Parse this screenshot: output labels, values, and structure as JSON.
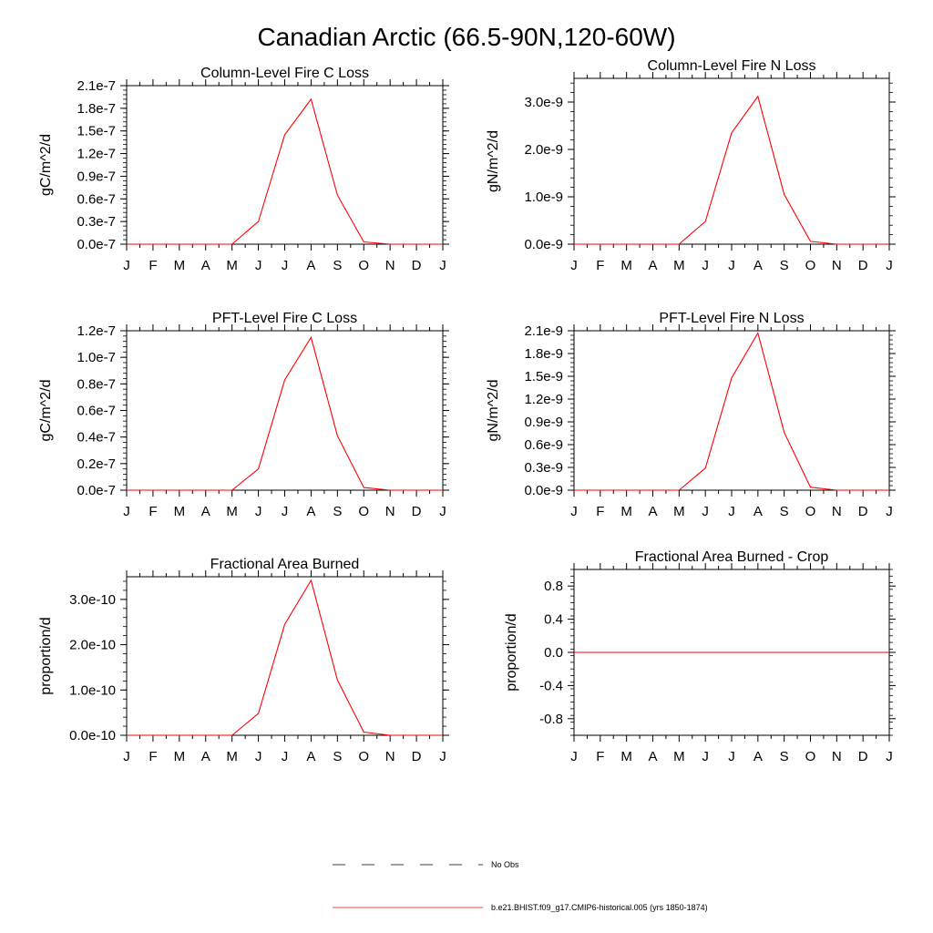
{
  "figure": {
    "title": "Canadian Arctic (66.5-90N,120-60W)",
    "months": [
      "J",
      "F",
      "M",
      "A",
      "M",
      "J",
      "J",
      "A",
      "S",
      "O",
      "N",
      "D",
      "J"
    ],
    "line_color": "#ff0000",
    "axis_color": "#000000"
  },
  "chart_data": [
    {
      "type": "line",
      "title": "Column-Level Fire C Loss",
      "xlabel": "",
      "ylabel": "gC/m^2/d",
      "x": [
        "J",
        "F",
        "M",
        "A",
        "M",
        "J",
        "J",
        "A",
        "S",
        "O",
        "N",
        "D",
        "J"
      ],
      "series": [
        {
          "name": "b.e21.BHIST.f09_g17.CMIP6-historical.005 (yrs 1850-1874)",
          "values": [
            0,
            0,
            0,
            0,
            0,
            3e-08,
            1.45e-07,
            1.92e-07,
            6.5e-08,
            3e-09,
            0,
            0,
            0
          ]
        }
      ],
      "ylim": [
        0,
        2.1e-07
      ],
      "yticks": [
        0,
        3e-08,
        6e-08,
        9e-08,
        1.2e-07,
        1.5e-07,
        1.8e-07,
        2.1e-07
      ],
      "ytick_labels": [
        "0.0e-7",
        "0.3e-7",
        "0.6e-7",
        "0.9e-7",
        "1.2e-7",
        "1.5e-7",
        "1.8e-7",
        "2.1e-7"
      ]
    },
    {
      "type": "line",
      "title": "Column-Level Fire N Loss",
      "xlabel": "",
      "ylabel": "gN/m^2/d",
      "x": [
        "J",
        "F",
        "M",
        "A",
        "M",
        "J",
        "J",
        "A",
        "S",
        "O",
        "N",
        "D",
        "J"
      ],
      "series": [
        {
          "name": "b.e21.BHIST.f09_g17.CMIP6-historical.005 (yrs 1850-1874)",
          "values": [
            0,
            0,
            0,
            0,
            0,
            4.8e-10,
            2.35e-09,
            3.12e-09,
            1.05e-09,
            6e-11,
            0,
            0,
            0
          ]
        }
      ],
      "ylim": [
        0,
        3.5e-09
      ],
      "yticks": [
        0,
        1e-09,
        2e-09,
        3e-09
      ],
      "ytick_labels": [
        "0.0e-9",
        "1.0e-9",
        "2.0e-9",
        "3.0e-9"
      ]
    },
    {
      "type": "line",
      "title": "PFT-Level Fire C Loss",
      "xlabel": "",
      "ylabel": "gC/m^2/d",
      "x": [
        "J",
        "F",
        "M",
        "A",
        "M",
        "J",
        "J",
        "A",
        "S",
        "O",
        "N",
        "D",
        "J"
      ],
      "series": [
        {
          "name": "b.e21.BHIST.f09_g17.CMIP6-historical.005 (yrs 1850-1874)",
          "values": [
            0,
            0,
            0,
            0,
            0,
            1.6e-08,
            8.3e-08,
            1.15e-07,
            4.1e-08,
            2e-09,
            0,
            0,
            0
          ]
        }
      ],
      "ylim": [
        0,
        1.2e-07
      ],
      "yticks": [
        0,
        2e-08,
        4e-08,
        6e-08,
        8e-08,
        1e-07,
        1.2e-07
      ],
      "ytick_labels": [
        "0.0e-7",
        "0.2e-7",
        "0.4e-7",
        "0.6e-7",
        "0.8e-7",
        "1.0e-7",
        "1.2e-7"
      ]
    },
    {
      "type": "line",
      "title": "PFT-Level Fire N Loss",
      "xlabel": "",
      "ylabel": "gN/m^2/d",
      "x": [
        "J",
        "F",
        "M",
        "A",
        "M",
        "J",
        "J",
        "A",
        "S",
        "O",
        "N",
        "D",
        "J"
      ],
      "series": [
        {
          "name": "b.e21.BHIST.f09_g17.CMIP6-historical.005 (yrs 1850-1874)",
          "values": [
            0,
            0,
            0,
            0,
            0,
            2.9e-10,
            1.48e-09,
            2.07e-09,
            7.6e-10,
            4e-11,
            0,
            0,
            0
          ]
        }
      ],
      "ylim": [
        0,
        2.1e-09
      ],
      "yticks": [
        0,
        3e-10,
        6e-10,
        9e-10,
        1.2e-09,
        1.5e-09,
        1.8e-09,
        2.1e-09
      ],
      "ytick_labels": [
        "0.0e-9",
        "0.3e-9",
        "0.6e-9",
        "0.9e-9",
        "1.2e-9",
        "1.5e-9",
        "1.8e-9",
        "2.1e-9"
      ]
    },
    {
      "type": "line",
      "title": "Fractional Area Burned",
      "xlabel": "",
      "ylabel": "proportion/d",
      "x": [
        "J",
        "F",
        "M",
        "A",
        "M",
        "J",
        "J",
        "A",
        "S",
        "O",
        "N",
        "D",
        "J"
      ],
      "series": [
        {
          "name": "b.e21.BHIST.f09_g17.CMIP6-historical.005 (yrs 1850-1874)",
          "values": [
            0,
            0,
            0,
            0,
            0,
            4.8e-11,
            2.45e-10,
            3.42e-10,
            1.22e-10,
            7e-12,
            0,
            0,
            0
          ]
        }
      ],
      "ylim": [
        0,
        3.5e-10
      ],
      "yticks": [
        0,
        1e-10,
        2e-10,
        3e-10
      ],
      "ytick_labels": [
        "0.0e-10",
        "1.0e-10",
        "2.0e-10",
        "3.0e-10"
      ]
    },
    {
      "type": "line",
      "title": "Fractional Area Burned - Crop",
      "xlabel": "",
      "ylabel": "proportion/d",
      "x": [
        "J",
        "F",
        "M",
        "A",
        "M",
        "J",
        "J",
        "A",
        "S",
        "O",
        "N",
        "D",
        "J"
      ],
      "series": [
        {
          "name": "b.e21.BHIST.f09_g17.CMIP6-historical.005 (yrs 1850-1874)",
          "values": [
            0,
            0,
            0,
            0,
            0,
            0,
            0,
            0,
            0,
            0,
            0,
            0,
            0
          ]
        }
      ],
      "ylim": [
        -1.0,
        1.0
      ],
      "yticks": [
        -0.8,
        -0.4,
        0.0,
        0.4,
        0.8
      ],
      "ytick_labels": [
        "-0.8",
        "-0.4",
        "0.0",
        "0.4",
        "0.8"
      ]
    }
  ],
  "legend": {
    "items": [
      {
        "label": "No Obs",
        "style": "dashed",
        "color": "#000000"
      },
      {
        "label": "b.e21.BHIST.f09_g17.CMIP6-historical.005 (yrs 1850-1874)",
        "style": "solid",
        "color": "#ff0000"
      }
    ]
  }
}
